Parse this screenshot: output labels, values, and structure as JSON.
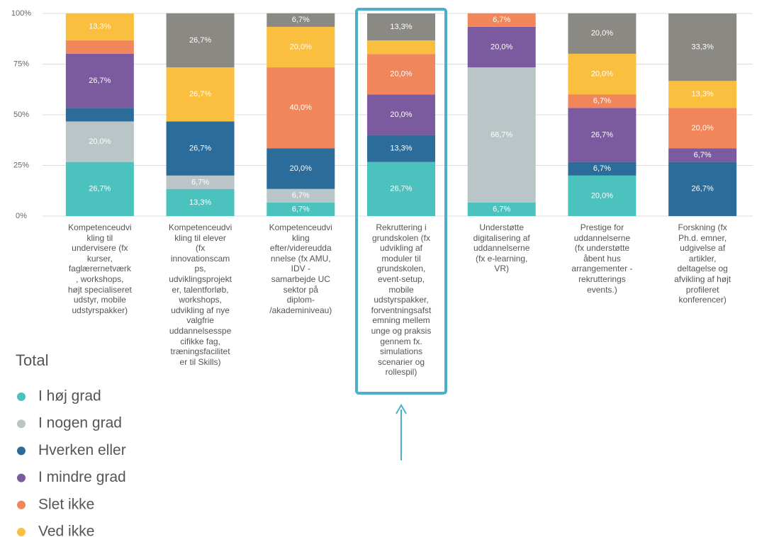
{
  "chart_data": {
    "type": "stacked_bar",
    "categories": [
      "Kompetenceudvi\nkling til\nundervisere (fx\nkurser,\nfaglærernetværk\n, workshops,\nhøjt specialiseret\nudstyr, mobile\nudstyrspakker)",
      "Kompetenceudvi\nkling til elever\n(fx\ninnovationscam\nps,\nudviklingsprojekt\ner, talentforløb,\nworkshops,\nudvikling af nye\nvalgfrie\nuddannelsesspe\ncifikke fag,\ntræningsfacilitet\ner til Skills)",
      "Kompetenceudvi\nkling\nefter/videreudda\nnnelse (fx AMU,\nIDV -\nsamarbejde UC\nsektor på\ndiplom-\n/akademiniveau)",
      "Rekruttering i\ngrundskolen (fx\nudvikling af\nmoduler til\ngrundskolen,\nevent-setup,\nmobile\nudstyrspakker,\nforventningsafst\nemning mellem\nunge og praksis\ngennem fx.\nsimulations\nscenarier og\nrollespil)",
      "Understøtte\ndigitalisering af\nuddannelserne\n(fx e-learning,\nVR)",
      "Prestige for\nuddannelserne\n(fx understøtte\nåbent hus\narrangementer -\nrekrutterings\nevents.)",
      "Forskning (fx\nPh.d. emner,\nudgivelse af\nartikler,\ndeltagelse og\nafvikling af højt\nprofileret\nkonferencer)"
    ],
    "series": [
      {
        "name": "I høj grad",
        "color": "#4cc2bf",
        "values": [
          26.7,
          13.3,
          6.7,
          26.7,
          6.7,
          20.0,
          0
        ],
        "value_labels": [
          "26,7%",
          "13,3%",
          "6,7%",
          "26,7%",
          "6,7%",
          "20,0%",
          null
        ]
      },
      {
        "name": "I nogen grad",
        "color": "#b9c5c7",
        "values": [
          20.0,
          6.7,
          6.7,
          0,
          66.7,
          0,
          0
        ],
        "value_labels": [
          "20,0%",
          "6,7%",
          "6,7%",
          null,
          "66,7%",
          null,
          null
        ]
      },
      {
        "name": "Hverken eller",
        "color": "#2b6c9b",
        "values": [
          6.7,
          26.7,
          20.0,
          13.3,
          0,
          6.7,
          26.7
        ],
        "value_labels": [
          null,
          "26,7%",
          "20,0%",
          "13,3%",
          null,
          "6,7%",
          "26,7%"
        ]
      },
      {
        "name": "I mindre grad",
        "color": "#7b5a9f",
        "values": [
          26.7,
          0,
          0,
          20.0,
          20.0,
          26.7,
          6.7
        ],
        "value_labels": [
          "26,7%",
          null,
          null,
          "20,0%",
          "20,0%",
          "26,7%",
          "6,7%"
        ]
      },
      {
        "name": "Slet ikke",
        "color": "#f0865a",
        "values": [
          6.7,
          0,
          40.0,
          20.0,
          6.7,
          6.7,
          20.0
        ],
        "value_labels": [
          null,
          null,
          "40,0%",
          "20,0%",
          "6,7%",
          "6,7%",
          "20,0%"
        ]
      },
      {
        "name": "Ved ikke",
        "color": "#fbbf3f",
        "values": [
          13.3,
          26.7,
          20.0,
          6.7,
          0,
          20.0,
          13.3
        ],
        "value_labels": [
          "13,3%",
          "26,7%",
          "20,0%",
          null,
          null,
          "20,0%",
          "13,3%"
        ]
      },
      {
        "name": null,
        "color": "#8b8983",
        "values": [
          0,
          26.7,
          6.7,
          13.3,
          0,
          20.0,
          33.3
        ],
        "value_labels": [
          null,
          "26,7%",
          "6,7%",
          "13,3%",
          null,
          "20,0%",
          "33,3%"
        ]
      }
    ],
    "ylim": [
      0,
      100
    ],
    "yticks": [
      {
        "value": 0,
        "label": "0%"
      },
      {
        "value": 25,
        "label": "25%"
      },
      {
        "value": 50,
        "label": "50%"
      },
      {
        "value": 75,
        "label": "75%"
      },
      {
        "value": 100,
        "label": "100%"
      }
    ],
    "grid": true,
    "legend_title": "Total"
  }
}
